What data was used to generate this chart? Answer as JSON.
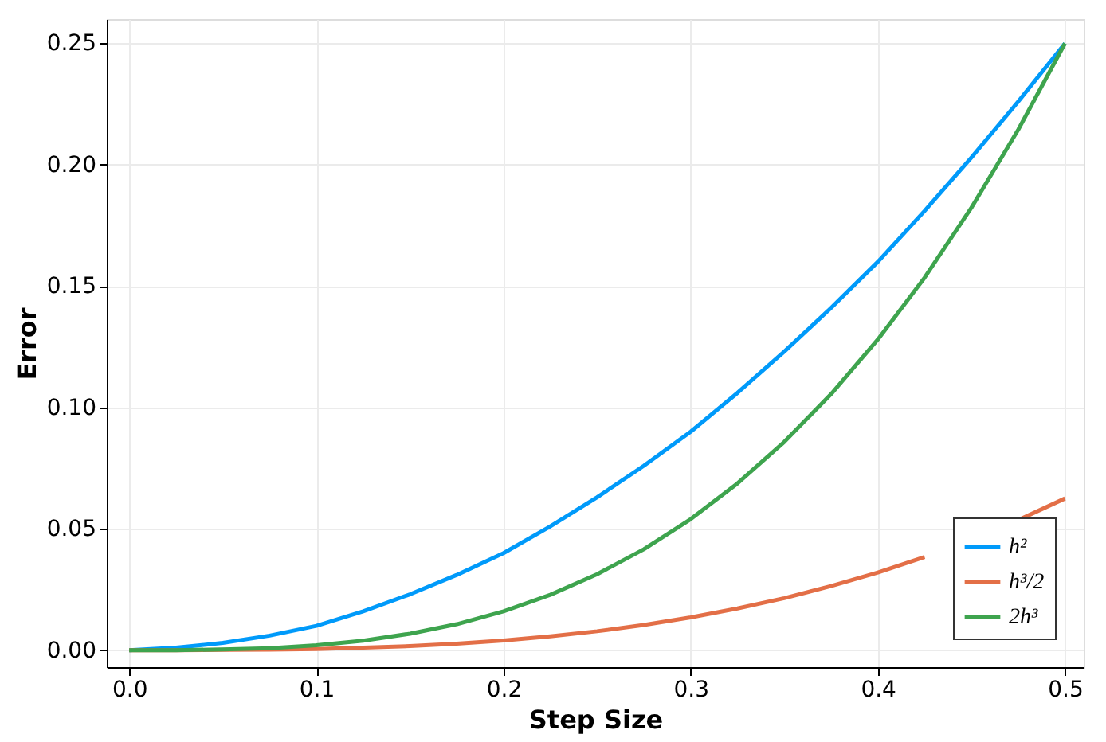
{
  "chart_data": {
    "type": "line",
    "xlabel": "Step Size",
    "ylabel": "Error",
    "x": [
      0,
      0.025,
      0.05,
      0.075,
      0.1,
      0.125,
      0.15,
      0.175,
      0.2,
      0.225,
      0.25,
      0.275,
      0.3,
      0.325,
      0.35,
      0.375,
      0.4,
      0.425,
      0.45,
      0.475,
      0.5
    ],
    "series": [
      {
        "name": "h²",
        "color": "#009afa",
        "values": [
          0,
          0.001,
          0.003,
          0.006,
          0.01,
          0.016,
          0.023,
          0.031,
          0.04,
          0.051,
          0.063,
          0.076,
          0.09,
          0.106,
          0.123,
          0.141,
          0.16,
          0.181,
          0.203,
          0.226,
          0.25
        ]
      },
      {
        "name": "h³/2",
        "color": "#e36f47",
        "values": [
          0,
          0,
          0.0001,
          0.0002,
          0.0005,
          0.001,
          0.0017,
          0.0027,
          0.004,
          0.0057,
          0.0078,
          0.0104,
          0.0135,
          0.0172,
          0.0214,
          0.0264,
          0.032,
          0.0384,
          null,
          0.0536,
          0.0625
        ]
      },
      {
        "name": "2h³",
        "color": "#3ea44e",
        "values": [
          0,
          0,
          0.0003,
          0.0008,
          0.002,
          0.0039,
          0.0068,
          0.0107,
          0.016,
          0.0228,
          0.0313,
          0.0416,
          0.054,
          0.0687,
          0.0858,
          0.1055,
          0.128,
          0.1535,
          0.1823,
          0.2144,
          0.25
        ]
      }
    ],
    "xlim": [
      -0.012,
      0.51
    ],
    "xticks": [
      {
        "value": 0,
        "label": "0.0"
      },
      0.1,
      0.2,
      0.3,
      0.4,
      {
        "value": 0.5,
        "label": "0.5"
      }
    ],
    "ylim": [
      -0.007,
      0.26
    ],
    "yticks": [
      {
        "value": 0,
        "label": "0.00"
      },
      0.05,
      {
        "value": 0.1,
        "label": "0.10"
      },
      0.15,
      {
        "value": 0.2,
        "label": "0.20"
      },
      0.25
    ],
    "grid": true,
    "legend": "bottom right",
    "marker": "none",
    "line_style": "solid"
  }
}
